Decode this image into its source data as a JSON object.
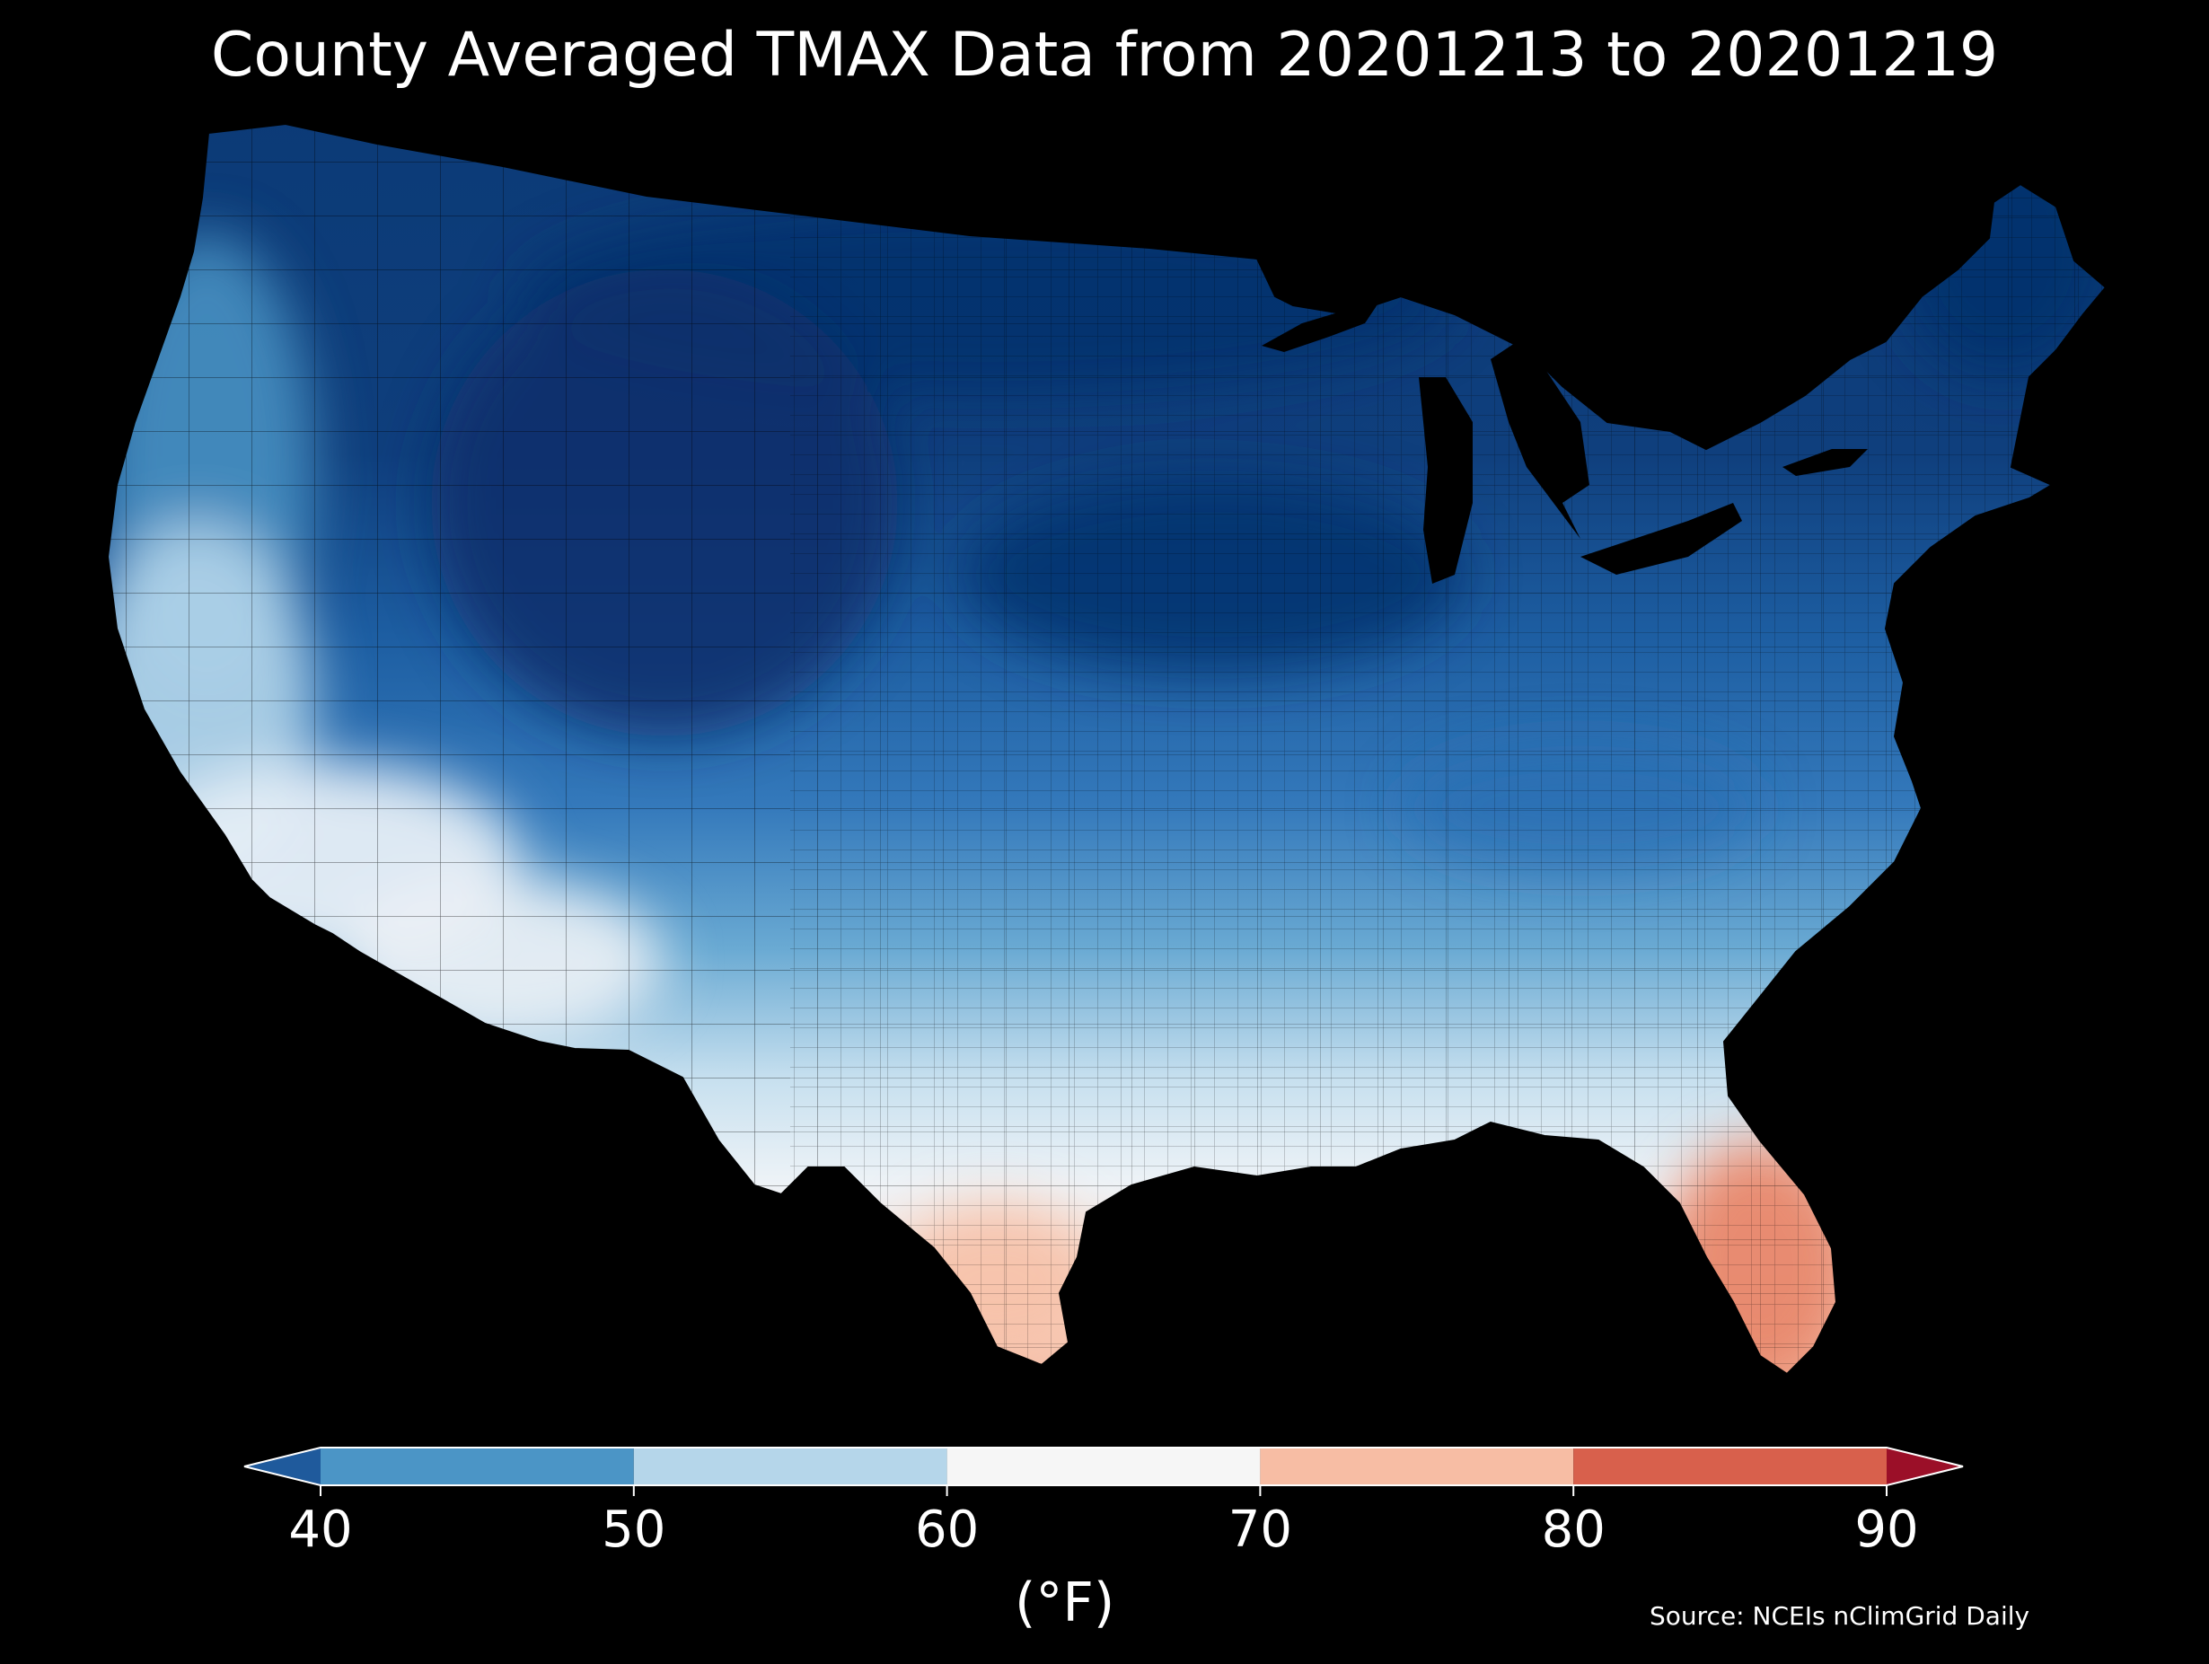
{
  "title": "County Averaged TMAX Data from 20201213 to 20201219",
  "legend": {
    "unit_label": "(°F)",
    "ticks": [
      "40",
      "50",
      "60",
      "70",
      "80",
      "90"
    ],
    "bins": [
      {
        "from": 40,
        "to": 50,
        "color": "#4b95c6"
      },
      {
        "from": 50,
        "to": 60,
        "color": "#b5d6ea"
      },
      {
        "from": 60,
        "to": 70,
        "color": "#f6f6f6"
      },
      {
        "from": 70,
        "to": 80,
        "color": "#f7bda4"
      },
      {
        "from": 80,
        "to": 90,
        "color": "#d8604c"
      }
    ],
    "extend_low_color": "#1f5a9c",
    "extend_high_color": "#9b0f28"
  },
  "source": "Source: NCEIs nClimGrid Daily",
  "map": {
    "region": "Contiguous United States, county level",
    "variable": "TMAX (weekly mean daily maximum temperature)",
    "colors": {
      "coldest": "#08306b",
      "cold": "#1c5aa0",
      "cool": "#4b95c6",
      "mild": "#b5d6ea",
      "neutral": "#f2f2f2",
      "warm": "#f7bda4",
      "hot": "#e8866a"
    }
  }
}
